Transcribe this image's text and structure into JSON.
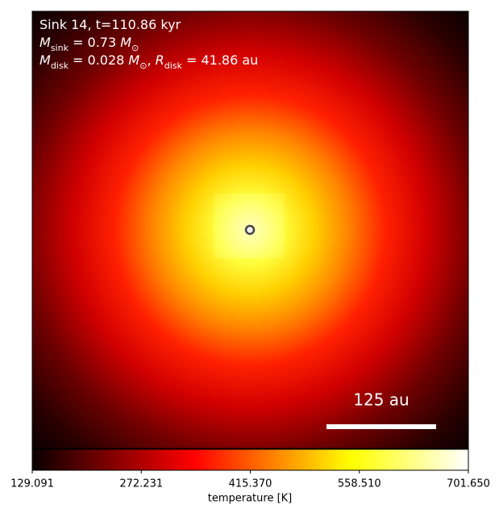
{
  "chart_data": {
    "type": "image",
    "colormap": "hot",
    "info_lines": [
      [
        {
          "text": "Sink 14, t=110.86 kyr"
        }
      ],
      [
        {
          "text": "M",
          "style": "italic"
        },
        {
          "text": "sink",
          "style": "sub"
        },
        {
          "text": " = 0.73 "
        },
        {
          "text": "M",
          "style": "italic"
        },
        {
          "text": "⊙",
          "style": "sub"
        }
      ],
      [
        {
          "text": "M",
          "style": "italic"
        },
        {
          "text": "disk",
          "style": "sub"
        },
        {
          "text": " = 0.028 "
        },
        {
          "text": "M",
          "style": "italic"
        },
        {
          "text": "⊙",
          "style": "sub"
        },
        {
          "text": ", "
        },
        {
          "text": "R",
          "style": "italic"
        },
        {
          "text": "disk",
          "style": "sub"
        },
        {
          "text": " = 41.86 au"
        }
      ]
    ],
    "scale_bar_label": "125 au",
    "colorbar_label": "temperature [K]",
    "clim": [
      129.091,
      701.65
    ],
    "cticks": [
      129.091,
      272.231,
      {
        "value": 415.37,
        "label": "415.370"
      },
      {
        "value": 558.51,
        "label": "558.510"
      },
      {
        "value": 701.65,
        "label": "701.650"
      }
    ]
  }
}
